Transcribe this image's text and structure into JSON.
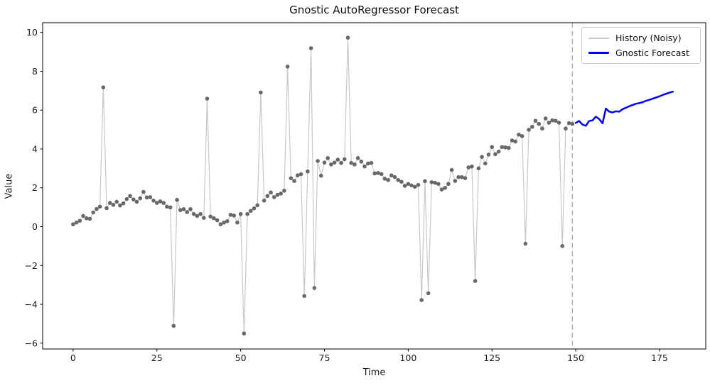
{
  "figure": {
    "title": "Gnostic AutoRegressor Forecast",
    "xlabel": "Time",
    "ylabel": "Value",
    "background_color": "#ffffff",
    "axis_color": "#000000",
    "legend": [
      {
        "label": "History (Noisy)"
      },
      {
        "label": "Gnostic Forecast"
      }
    ]
  },
  "chart_data": {
    "type": "line",
    "title": "Gnostic AutoRegressor Forecast",
    "xlabel": "Time",
    "ylabel": "Value",
    "xlim": [
      -9.1,
      188.8
    ],
    "ylim": [
      -6.3,
      10.5
    ],
    "xticks": [
      0,
      25,
      50,
      75,
      100,
      125,
      150,
      175
    ],
    "xtick_labels": [
      "0",
      "25",
      "50",
      "75",
      "100",
      "125",
      "150",
      "175"
    ],
    "yticks": [
      -6,
      -4,
      -2,
      0,
      2,
      4,
      6,
      8,
      10
    ],
    "ytick_labels": [
      "−6",
      "−4",
      "−2",
      "0",
      "2",
      "4",
      "6",
      "8",
      "10"
    ],
    "grid": false,
    "legend_position": "upper right",
    "forecast_start_line": {
      "x": 149,
      "style": "dashed",
      "color": "#ababab"
    },
    "series": [
      {
        "name": "History (Noisy)",
        "style": "line+markers",
        "color": "#c8c8c8",
        "marker_color": "#686868",
        "line_width": 1.2,
        "marker_radius": 2.8,
        "x": [
          0,
          1,
          2,
          3,
          4,
          5,
          6,
          7,
          8,
          9,
          10,
          11,
          12,
          13,
          14,
          15,
          16,
          17,
          18,
          19,
          20,
          21,
          22,
          23,
          24,
          25,
          26,
          27,
          28,
          29,
          30,
          31,
          32,
          33,
          34,
          35,
          36,
          37,
          38,
          39,
          40,
          41,
          42,
          43,
          44,
          45,
          46,
          47,
          48,
          49,
          50,
          51,
          52,
          53,
          54,
          55,
          56,
          57,
          58,
          59,
          60,
          61,
          62,
          63,
          64,
          65,
          66,
          67,
          68,
          69,
          70,
          71,
          72,
          73,
          74,
          75,
          76,
          77,
          78,
          79,
          80,
          81,
          82,
          83,
          84,
          85,
          86,
          87,
          88,
          89,
          90,
          91,
          92,
          93,
          94,
          95,
          96,
          97,
          98,
          99,
          100,
          101,
          102,
          103,
          104,
          105,
          106,
          107,
          108,
          109,
          110,
          111,
          112,
          113,
          114,
          115,
          116,
          117,
          118,
          119,
          120,
          121,
          122,
          123,
          124,
          125,
          126,
          127,
          128,
          129,
          130,
          131,
          132,
          133,
          134,
          135,
          136,
          137,
          138,
          139,
          140,
          141,
          142,
          143,
          144,
          145,
          146,
          147,
          148,
          149
        ],
        "values": [
          0.12,
          0.21,
          0.3,
          0.55,
          0.43,
          0.4,
          0.73,
          0.91,
          1.03,
          7.17,
          0.95,
          1.22,
          1.12,
          1.28,
          1.09,
          1.2,
          1.42,
          1.58,
          1.4,
          1.28,
          1.46,
          1.79,
          1.5,
          1.52,
          1.34,
          1.22,
          1.3,
          1.22,
          1.03,
          0.99,
          -5.11,
          1.38,
          0.85,
          0.9,
          0.75,
          0.9,
          0.65,
          0.55,
          0.65,
          0.45,
          6.59,
          0.52,
          0.43,
          0.33,
          0.12,
          0.21,
          0.28,
          0.61,
          0.57,
          0.21,
          0.65,
          -5.5,
          0.65,
          0.81,
          0.94,
          1.1,
          6.91,
          1.34,
          1.58,
          1.76,
          1.52,
          1.64,
          1.7,
          1.85,
          8.24,
          2.49,
          2.35,
          2.64,
          2.7,
          -3.57,
          2.84,
          9.19,
          -3.16,
          3.38,
          2.62,
          3.3,
          3.53,
          3.2,
          3.3,
          3.45,
          3.28,
          3.47,
          9.73,
          3.28,
          3.2,
          3.53,
          3.35,
          3.1,
          3.25,
          3.28,
          2.74,
          2.76,
          2.71,
          2.47,
          2.4,
          2.64,
          2.55,
          2.4,
          2.31,
          2.1,
          2.2,
          2.12,
          2.05,
          2.15,
          -3.78,
          2.34,
          -3.43,
          2.29,
          2.26,
          2.2,
          1.91,
          2.0,
          2.2,
          2.92,
          2.35,
          2.55,
          2.55,
          2.5,
          3.05,
          3.1,
          -2.8,
          3.0,
          3.59,
          3.25,
          3.71,
          4.1,
          3.73,
          3.86,
          4.1,
          4.08,
          4.05,
          4.44,
          4.38,
          4.74,
          4.66,
          -0.88,
          4.99,
          5.14,
          5.45,
          5.29,
          5.05,
          5.57,
          5.35,
          5.47,
          5.45,
          5.35,
          -1.0,
          5.05,
          5.33,
          5.29
        ]
      },
      {
        "name": "Gnostic Forecast",
        "style": "line",
        "color": "#0000ff",
        "line_width": 2.5,
        "x": [
          150,
          151,
          152,
          153,
          154,
          155,
          156,
          157,
          158,
          159,
          160,
          161,
          162,
          163,
          164,
          165,
          166,
          167,
          168,
          169,
          170,
          171,
          172,
          173,
          174,
          175,
          176,
          177,
          178,
          179
        ],
        "values": [
          5.34,
          5.44,
          5.26,
          5.19,
          5.44,
          5.47,
          5.66,
          5.54,
          5.32,
          6.08,
          5.92,
          5.88,
          5.94,
          5.92,
          6.05,
          6.12,
          6.2,
          6.26,
          6.33,
          6.36,
          6.41,
          6.48,
          6.53,
          6.59,
          6.65,
          6.71,
          6.78,
          6.84,
          6.9,
          6.95
        ]
      }
    ]
  }
}
